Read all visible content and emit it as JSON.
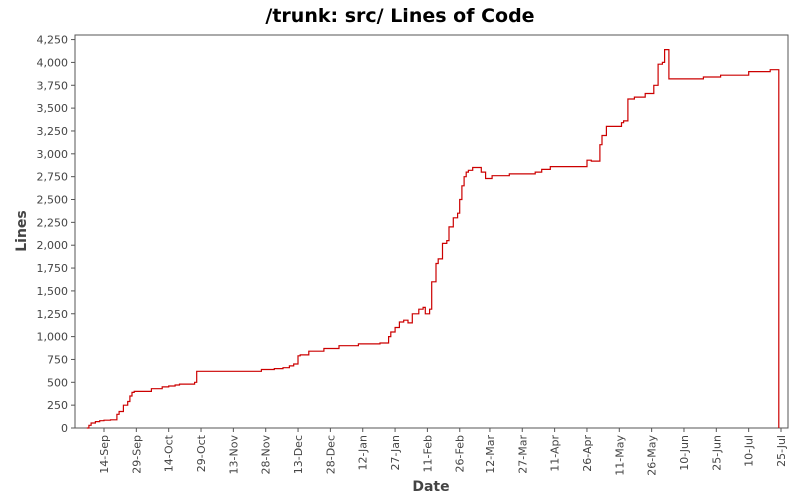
{
  "chart_data": {
    "type": "line",
    "title": "/trunk: src/ Lines of Code",
    "xlabel": "Date",
    "ylabel": "Lines",
    "ylim": [
      0,
      4300
    ],
    "yticks": [
      0,
      250,
      500,
      750,
      1000,
      1250,
      1500,
      1750,
      2000,
      2250,
      2500,
      2750,
      3000,
      3250,
      3500,
      3750,
      4000,
      4250
    ],
    "ytick_labels": [
      "0",
      "250",
      "500",
      "750",
      "1,000",
      "1,250",
      "1,500",
      "1,750",
      "2,000",
      "2,250",
      "2,500",
      "2,750",
      "3,000",
      "3,250",
      "3,500",
      "3,750",
      "4,000",
      "4,250"
    ],
    "xtick_labels": [
      "14-Sep",
      "29-Sep",
      "14-Oct",
      "29-Oct",
      "13-Nov",
      "28-Nov",
      "13-Dec",
      "28-Dec",
      "12-Jan",
      "27-Jan",
      "11-Feb",
      "26-Feb",
      "12-Mar",
      "27-Mar",
      "11-Apr",
      "26-Apr",
      "11-May",
      "26-May",
      "10-Jun",
      "25-Jun",
      "10-Jul",
      "25-Jul"
    ],
    "grid": false,
    "line_color": "#cc0000",
    "series": [
      {
        "step": true,
        "x": [
          "06-Sep",
          "07-Sep",
          "08-Sep",
          "10-Sep",
          "12-Sep",
          "14-Sep",
          "17-Sep",
          "20-Sep",
          "21-Sep",
          "23-Sep",
          "25-Sep",
          "26-Sep",
          "27-Sep",
          "28-Sep",
          "30-Sep",
          "06-Oct",
          "11-Oct",
          "14-Oct",
          "17-Oct",
          "19-Oct",
          "26-Oct",
          "27-Oct",
          "13-Nov",
          "26-Nov",
          "02-Dec",
          "06-Dec",
          "09-Dec",
          "11-Dec",
          "13-Dec",
          "14-Dec",
          "18-Dec",
          "25-Dec",
          "01-Jan",
          "10-Jan",
          "20-Jan",
          "24-Jan",
          "25-Jan",
          "27-Jan",
          "29-Jan",
          "31-Jan",
          "02-Feb",
          "04-Feb",
          "07-Feb",
          "09-Feb",
          "10-Feb",
          "12-Feb",
          "13-Feb",
          "15-Feb",
          "16-Feb",
          "18-Feb",
          "20-Feb",
          "21-Feb",
          "23-Feb",
          "25-Feb",
          "26-Feb",
          "27-Feb",
          "28-Feb",
          "01-Mar",
          "02-Mar",
          "04-Mar",
          "06-Mar",
          "08-Mar",
          "10-Mar",
          "13-Mar",
          "21-Mar",
          "02-Apr",
          "05-Apr",
          "09-Apr",
          "26-Apr",
          "28-Apr",
          "29-Apr",
          "01-May",
          "02-May",
          "03-May",
          "05-May",
          "12-May",
          "13-May",
          "15-May",
          "18-May",
          "23-May",
          "27-May",
          "29-May",
          "31-May",
          "01-Jun",
          "03-Jun",
          "05-Jun",
          "19-Jun",
          "27-Jun",
          "10-Jul",
          "20-Jul",
          "24-Jul"
        ],
        "y": [
          0,
          30,
          55,
          70,
          80,
          85,
          90,
          150,
          180,
          250,
          290,
          350,
          390,
          400,
          400,
          430,
          450,
          460,
          470,
          480,
          500,
          620,
          620,
          640,
          650,
          660,
          680,
          700,
          790,
          800,
          840,
          870,
          900,
          920,
          930,
          1000,
          1050,
          1100,
          1160,
          1180,
          1150,
          1250,
          1300,
          1320,
          1250,
          1300,
          1600,
          1800,
          1850,
          2020,
          2050,
          2200,
          2300,
          2350,
          2500,
          2650,
          2750,
          2800,
          2820,
          2850,
          2850,
          2800,
          2730,
          2760,
          2780,
          2800,
          2830,
          2860,
          2930,
          2920,
          2920,
          2920,
          3100,
          3200,
          3300,
          3340,
          3360,
          3600,
          3620,
          3660,
          3750,
          3980,
          4000,
          4140,
          3820,
          3820,
          3840,
          3860,
          3900,
          3920,
          0
        ]
      }
    ]
  }
}
